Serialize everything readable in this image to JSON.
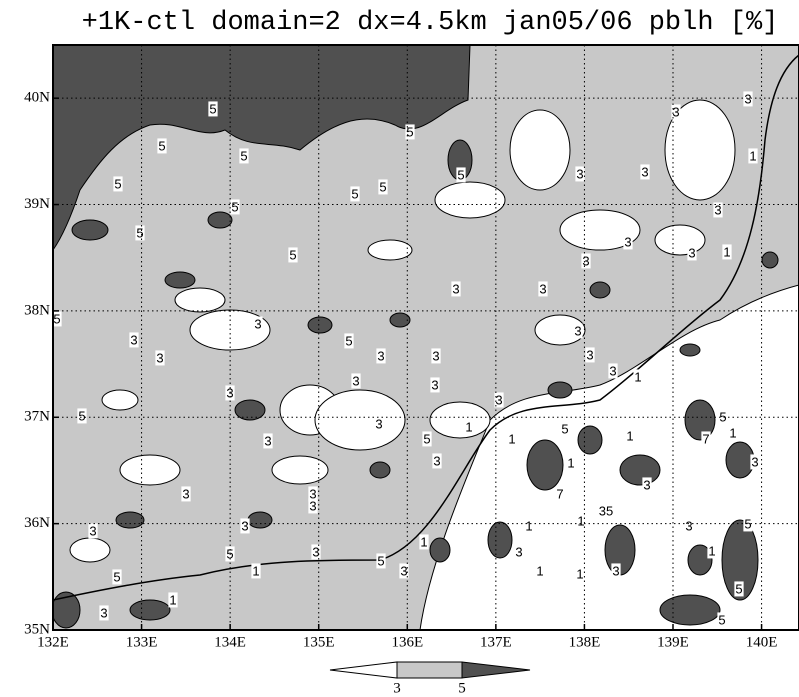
{
  "chart_data": {
    "type": "contour",
    "title": "+1K-ctl domain=2 dx=4.5km jan05/06 pblh [%]",
    "xlim": [
      132,
      140.4
    ],
    "ylim": [
      35,
      40.5
    ],
    "xticks": [
      {
        "value": 132,
        "label": "132E"
      },
      {
        "value": 133,
        "label": "133E"
      },
      {
        "value": 134,
        "label": "134E"
      },
      {
        "value": 135,
        "label": "135E"
      },
      {
        "value": 136,
        "label": "136E"
      },
      {
        "value": 137,
        "label": "137E"
      },
      {
        "value": 138,
        "label": "138E"
      },
      {
        "value": 139,
        "label": "139E"
      },
      {
        "value": 140,
        "label": "140E"
      }
    ],
    "yticks": [
      {
        "value": 35,
        "label": "35N"
      },
      {
        "value": 36,
        "label": "36N"
      },
      {
        "value": 37,
        "label": "37N"
      },
      {
        "value": 38,
        "label": "38N"
      },
      {
        "value": 39,
        "label": "39N"
      },
      {
        "value": 40,
        "label": "40N"
      }
    ],
    "grid": true,
    "levels": [
      3,
      5
    ],
    "colors": [
      "#ffffff",
      "#c8c8c8",
      "#505050"
    ],
    "contour_labels": [
      "5",
      "5",
      "5",
      "5",
      "5",
      "5",
      "5",
      "5",
      "5",
      "5",
      "5",
      "3",
      "3",
      "3",
      "3",
      "3",
      "3",
      "3",
      "3",
      "1",
      "3",
      "3",
      "3",
      "3",
      "3",
      "5",
      "3",
      "3",
      "3",
      "3",
      "3",
      "3",
      "3",
      "1",
      "3",
      "5",
      "3",
      "3",
      "5",
      "1",
      "1",
      "5",
      "1",
      "7",
      "5",
      "1",
      "3",
      "3",
      "3",
      "3",
      "3",
      "3",
      "7",
      "1",
      "3",
      "35",
      "1",
      "3",
      "3",
      "1",
      "1",
      "3",
      "3",
      "5",
      "5",
      "3",
      "5",
      "3",
      "1",
      "5",
      "1",
      "3",
      "1",
      "1",
      "3",
      "1",
      "5",
      "5",
      "1",
      "5"
    ]
  }
}
